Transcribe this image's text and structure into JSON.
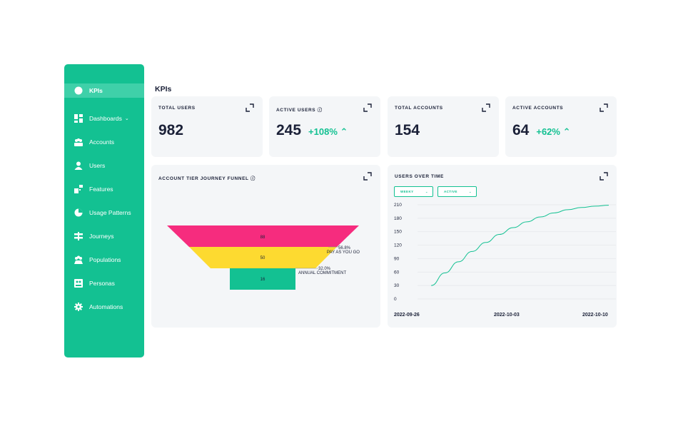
{
  "sidebar": {
    "items": [
      {
        "label": "KPIs",
        "icon": "pie-icon"
      },
      {
        "label": "Dashboards",
        "icon": "grid-icon"
      },
      {
        "label": "Accounts",
        "icon": "accounts-icon"
      },
      {
        "label": "Users",
        "icon": "user-icon"
      },
      {
        "label": "Features",
        "icon": "features-icon"
      },
      {
        "label": "Usage Patterns",
        "icon": "usage-icon"
      },
      {
        "label": "Journeys",
        "icon": "journeys-icon"
      },
      {
        "label": "Populations",
        "icon": "populations-icon"
      },
      {
        "label": "Personas",
        "icon": "personas-icon"
      },
      {
        "label": "Automations",
        "icon": "gear-icon"
      }
    ]
  },
  "page": {
    "title": "KPIs"
  },
  "kpis": [
    {
      "label": "TOTAL USERS",
      "value": "982",
      "delta": ""
    },
    {
      "label": "ACTIVE USERS ⓘ",
      "value": "245",
      "delta": "+108%"
    },
    {
      "label": "TOTAL ACCOUNTS",
      "value": "154",
      "delta": ""
    },
    {
      "label": "ACTIVE ACCOUNTS",
      "value": "64",
      "delta": "+62%"
    }
  ],
  "funnel": {
    "title": "ACCOUNT TIER JOURNEY FUNNEL ⓘ",
    "stages": [
      {
        "value": 88,
        "color": "#f62c7e"
      },
      {
        "value": 50,
        "color": "#fdda30",
        "pct": "56.8%",
        "name": "PAY AS YOU GO"
      },
      {
        "value": 16,
        "color": "#13c192",
        "pct": "32.0%",
        "name": "ANNUAL COMMITMENT"
      }
    ]
  },
  "usersOverTime": {
    "title": "USERS OVER TIME",
    "dropdowns": [
      "WEEKY",
      "ACTIVE"
    ],
    "yticks": [
      "210",
      "180",
      "150",
      "120",
      "90",
      "60",
      "30",
      "0"
    ],
    "xticks": [
      "2022-09-26",
      "2022-10-03",
      "2022-10-10"
    ]
  },
  "chart_data": {
    "type": "line",
    "title": "USERS OVER TIME",
    "xlabel": "",
    "ylabel": "",
    "ylim": [
      0,
      210
    ],
    "x": [
      "2022-09-27",
      "2022-09-28",
      "2022-09-29",
      "2022-09-30",
      "2022-10-01",
      "2022-10-02",
      "2022-10-03",
      "2022-10-04",
      "2022-10-05",
      "2022-10-06",
      "2022-10-07",
      "2022-10-08",
      "2022-10-09",
      "2022-10-10"
    ],
    "series": [
      {
        "values": [
          30,
          58,
          83,
          106,
          126,
          144,
          159,
          172,
          183,
          192,
          199,
          204,
          207,
          209
        ]
      }
    ],
    "color": "#13c192",
    "grid": true
  },
  "colors": {
    "accent": "#13c192",
    "navy": "#1b2138",
    "card": "#f4f6f8"
  }
}
